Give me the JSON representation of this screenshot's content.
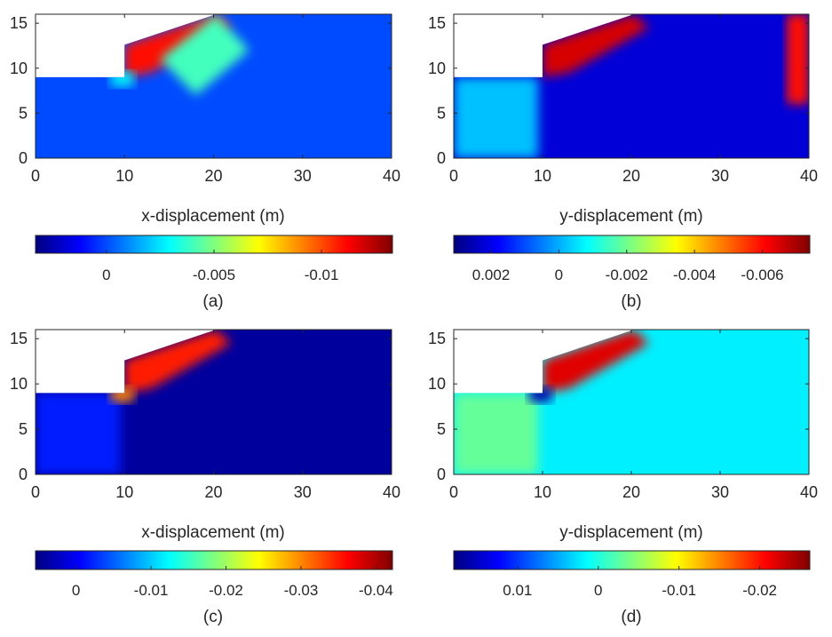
{
  "colormap": [
    "#00007f",
    "#0000ff",
    "#007fff",
    "#00ffff",
    "#7fff7f",
    "#ffff00",
    "#ff7f00",
    "#ff0000",
    "#7f0000"
  ],
  "chart_data": [
    {
      "type": "heatmap",
      "panel_label": "(a)",
      "xlabel": "x-displacement (m)",
      "xlim": [
        0,
        40
      ],
      "ylim": [
        0,
        16
      ],
      "xticks": [
        "0",
        "10",
        "20",
        "30",
        "40"
      ],
      "yticks": [
        "0",
        "5",
        "10",
        "15"
      ],
      "colorbar_ticks": [
        {
          "label": "0",
          "value": 0.0
        },
        {
          "label": "-0.005",
          "value": -0.005
        },
        {
          "label": "-0.01",
          "value": -0.01
        }
      ],
      "colorbar_range": [
        0.0033,
        -0.0133
      ],
      "background_value": 0.0,
      "regions": [
        {
          "desc": "slope face",
          "value": -0.011
        },
        {
          "desc": "crest",
          "value": -0.004
        },
        {
          "desc": "toe",
          "value": -0.003
        }
      ]
    },
    {
      "type": "heatmap",
      "panel_label": "(b)",
      "xlabel": "y-displacement (m)",
      "xlim": [
        0,
        40
      ],
      "ylim": [
        0,
        16
      ],
      "xticks": [
        "0",
        "10",
        "20",
        "30",
        "40"
      ],
      "yticks": [
        "0",
        "5",
        "10",
        "15"
      ],
      "colorbar_ticks": [
        {
          "label": "0.002",
          "value": 0.002
        },
        {
          "label": "0",
          "value": 0.0
        },
        {
          "label": "-0.002",
          "value": -0.002
        },
        {
          "label": "-0.004",
          "value": -0.004
        },
        {
          "label": "-0.006",
          "value": -0.006
        }
      ],
      "colorbar_range": [
        0.0031,
        -0.0074
      ],
      "background_value": 0.0022,
      "regions": [
        {
          "desc": "left block",
          "value": -0.0002
        },
        {
          "desc": "slope face",
          "value": -0.0065
        },
        {
          "desc": "right edge",
          "value": -0.006
        }
      ]
    },
    {
      "type": "heatmap",
      "panel_label": "(c)",
      "xlabel": "x-displacement (m)",
      "xlim": [
        0,
        40
      ],
      "ylim": [
        0,
        16
      ],
      "xticks": [
        "0",
        "10",
        "20",
        "30",
        "40"
      ],
      "yticks": [
        "0",
        "5",
        "10",
        "15"
      ],
      "colorbar_ticks": [
        {
          "label": "0",
          "value": 0.0
        },
        {
          "label": "-0.01",
          "value": -0.01
        },
        {
          "label": "-0.02",
          "value": -0.02
        },
        {
          "label": "-0.03",
          "value": -0.03
        },
        {
          "label": "-0.04",
          "value": -0.04
        }
      ],
      "colorbar_range": [
        0.0054,
        -0.0422
      ],
      "background_value": 0.004,
      "regions": [
        {
          "desc": "left block",
          "value": -0.002
        },
        {
          "desc": "slope face",
          "value": -0.035
        },
        {
          "desc": "toe",
          "value": -0.03
        }
      ]
    },
    {
      "type": "heatmap",
      "panel_label": "(d)",
      "xlabel": "y-displacement (m)",
      "xlim": [
        0,
        40
      ],
      "ylim": [
        0,
        16
      ],
      "xticks": [
        "0",
        "10",
        "20",
        "30",
        "40"
      ],
      "yticks": [
        "0",
        "5",
        "10",
        "15"
      ],
      "colorbar_ticks": [
        {
          "label": "0.01",
          "value": 0.01
        },
        {
          "label": "0",
          "value": 0.0
        },
        {
          "label": "-0.01",
          "value": -0.01
        },
        {
          "label": "-0.02",
          "value": -0.02
        }
      ],
      "colorbar_range": [
        0.0179,
        -0.0262
      ],
      "background_value": 0.002,
      "regions": [
        {
          "desc": "left block",
          "value": -0.003
        },
        {
          "desc": "slope face",
          "value": -0.022
        },
        {
          "desc": "toe",
          "value": 0.016
        }
      ]
    }
  ]
}
